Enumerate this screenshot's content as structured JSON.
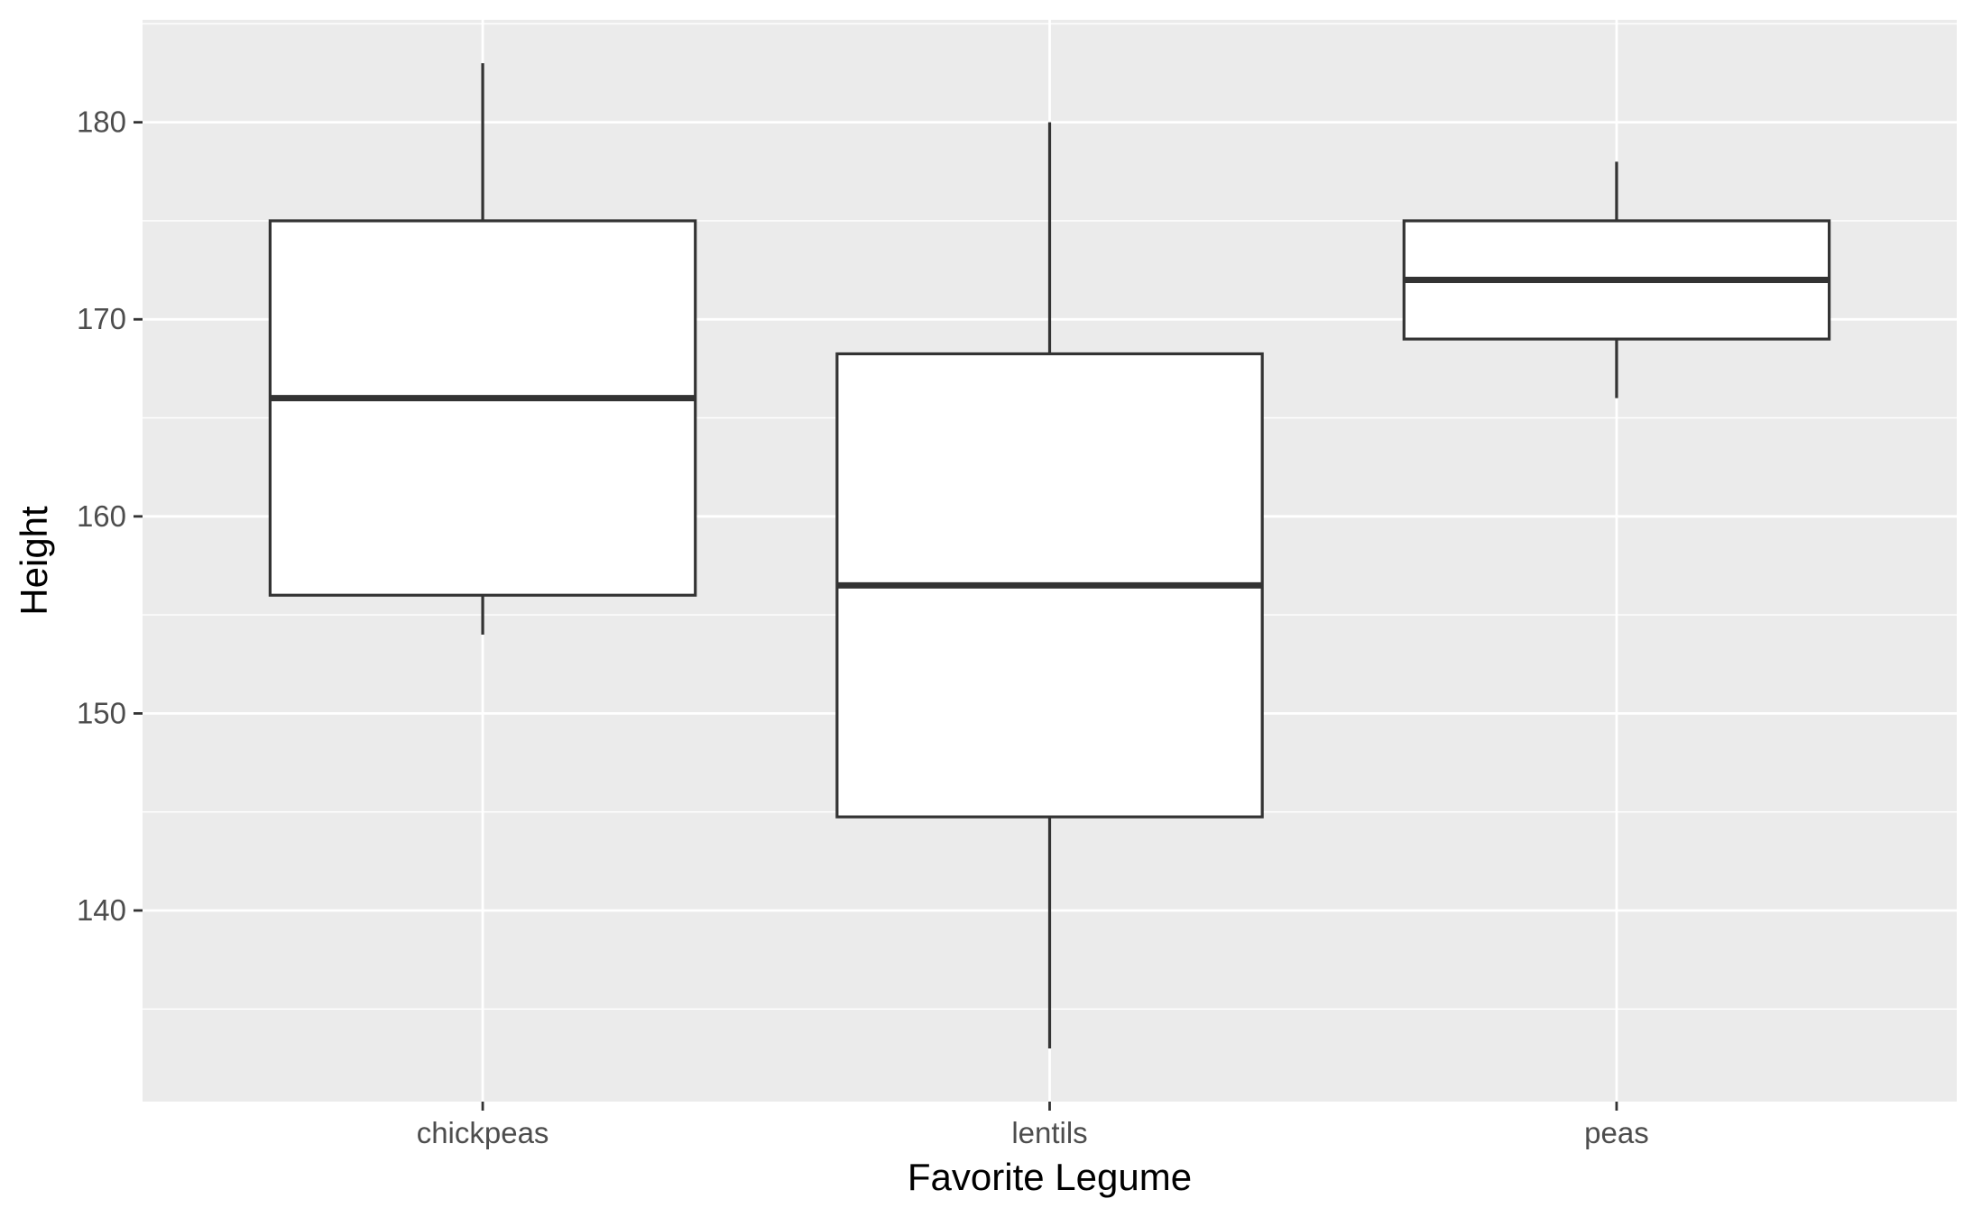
{
  "chart_data": {
    "type": "boxplot",
    "title": "",
    "xlabel": "Favorite Legume",
    "ylabel": "Height",
    "ylim": [
      130.3,
      185.2
    ],
    "yticks": [
      140,
      150,
      160,
      170,
      180
    ],
    "ytick_labels": [
      "140",
      "150",
      "160",
      "170",
      "180"
    ],
    "grid": true,
    "categories": [
      "chickpeas",
      "lentils",
      "peas"
    ],
    "boxes": [
      {
        "category": "chickpeas",
        "whisker_low": 154,
        "q1": 156,
        "median": 166,
        "q3": 175,
        "whisker_high": 183
      },
      {
        "category": "lentils",
        "whisker_low": 133,
        "q1": 144.75,
        "median": 156.5,
        "q3": 168.25,
        "whisker_high": 180
      },
      {
        "category": "peas",
        "whisker_low": 166,
        "q1": 169,
        "median": 172,
        "q3": 175,
        "whisker_high": 178
      }
    ],
    "colors": {
      "panel_background": "#ebebeb",
      "grid_major": "#ffffff",
      "grid_minor": "#ffffff",
      "box_fill": "#ffffff",
      "box_line": "#333333",
      "tick_mark": "#333333",
      "tick_text": "#4d4d4d",
      "axis_title": "#000000"
    }
  }
}
